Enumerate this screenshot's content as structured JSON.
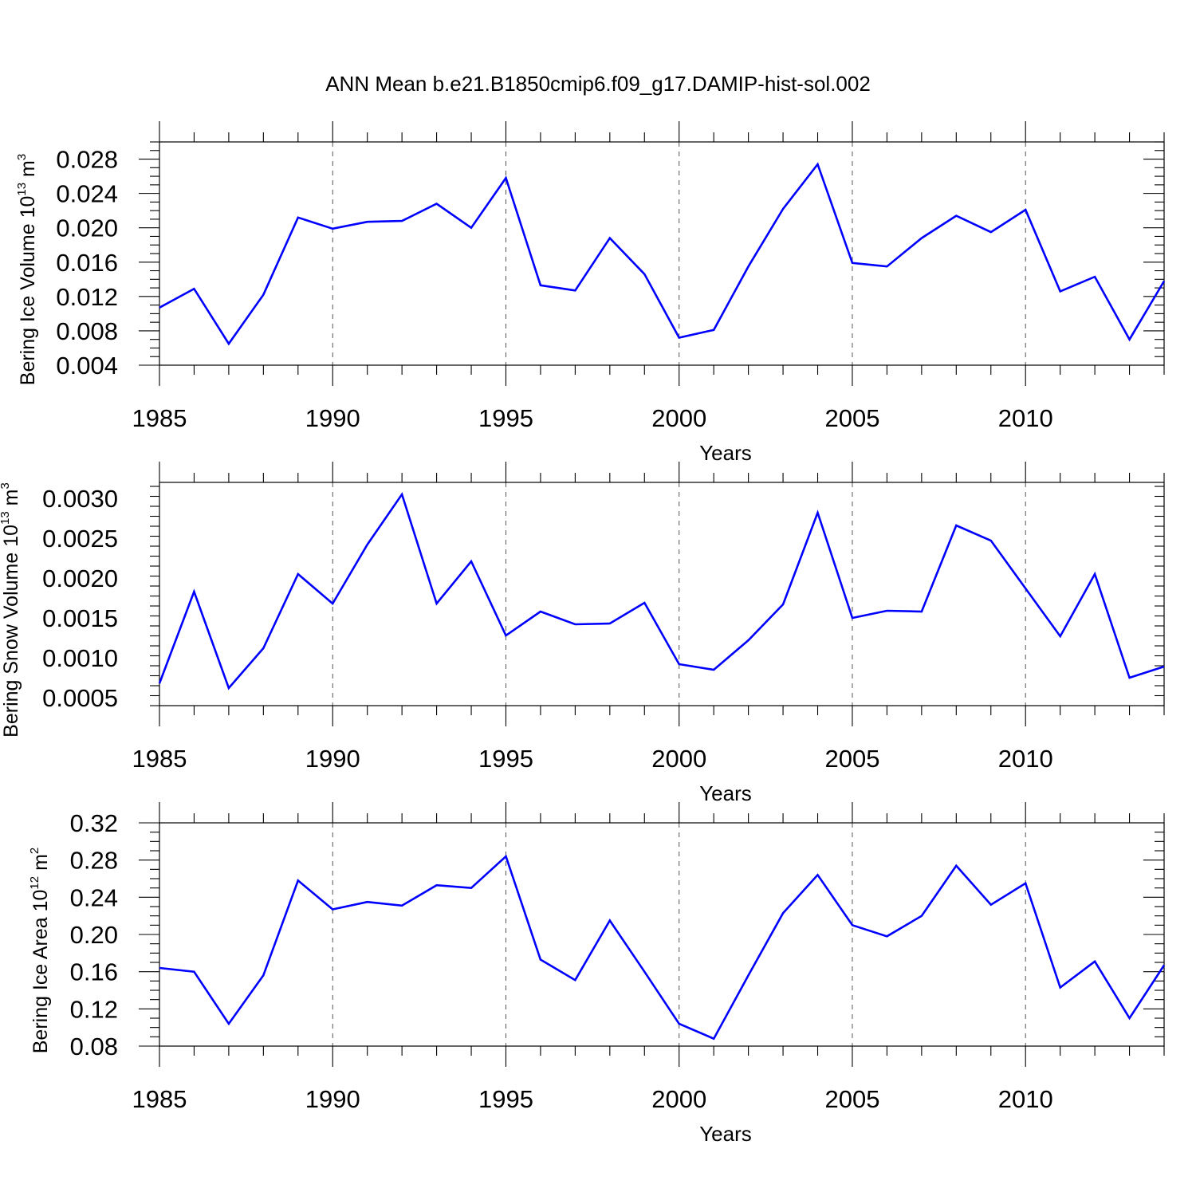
{
  "title": "ANN Mean b.e21.B1850cmip6.f09_g17.DAMIP-hist-sol.002",
  "colors": {
    "line": "#0000ff",
    "axis": "#000000",
    "grid": "#555555"
  },
  "chart_data": [
    {
      "type": "line",
      "xlabel": "Years",
      "ylabel": {
        "text": "Bering Ice Volume 10",
        "exponent": "13",
        "unit": "m",
        "unit_exponent": "3"
      },
      "xlim": [
        1985,
        2014
      ],
      "ylim": [
        0.004,
        0.03
      ],
      "x_ticks": [
        1985,
        1990,
        1995,
        2000,
        2005,
        2010
      ],
      "x_tick_labels": [
        "1985",
        "1990",
        "1995",
        "2000",
        "2005",
        "2010"
      ],
      "y_ticks": [
        0.004,
        0.008,
        0.012,
        0.016,
        0.02,
        0.024,
        0.028
      ],
      "y_tick_labels": [
        "0.004",
        "0.008",
        "0.012",
        "0.016",
        "0.020",
        "0.024",
        "0.028"
      ],
      "grid": "vertical dashed at major x ticks",
      "x": [
        1985,
        1986,
        1987,
        1988,
        1989,
        1990,
        1991,
        1992,
        1993,
        1994,
        1995,
        1996,
        1997,
        1998,
        1999,
        2000,
        2001,
        2002,
        2003,
        2004,
        2005,
        2006,
        2007,
        2008,
        2009,
        2010,
        2011,
        2012,
        2013,
        2014
      ],
      "series": [
        {
          "values": [
            0.0107,
            0.0129,
            0.0065,
            0.0122,
            0.0212,
            0.0199,
            0.0207,
            0.0208,
            0.0228,
            0.02,
            0.0258,
            0.0133,
            0.0127,
            0.0188,
            0.0146,
            0.0072,
            0.0081,
            0.0155,
            0.0222,
            0.0274,
            0.0159,
            0.0155,
            0.0188,
            0.0214,
            0.0195,
            0.0221,
            0.0126,
            0.0143,
            0.007,
            0.0138
          ]
        }
      ]
    },
    {
      "type": "line",
      "xlabel": "Years",
      "ylabel": {
        "text": "Bering Snow Volume 10",
        "exponent": "13",
        "unit": "m",
        "unit_exponent": "3"
      },
      "xlim": [
        1985,
        2014
      ],
      "ylim": [
        0.0004,
        0.0032
      ],
      "x_ticks": [
        1985,
        1990,
        1995,
        2000,
        2005,
        2010
      ],
      "x_tick_labels": [
        "1985",
        "1990",
        "1995",
        "2000",
        "2005",
        "2010"
      ],
      "y_ticks": [
        0.0005,
        0.001,
        0.0015,
        0.002,
        0.0025,
        0.003
      ],
      "y_tick_labels": [
        "0.0005",
        "0.0010",
        "0.0015",
        "0.0020",
        "0.0025",
        "0.0030"
      ],
      "grid": "vertical dashed at major x ticks",
      "x": [
        1985,
        1986,
        1987,
        1988,
        1989,
        1990,
        1991,
        1992,
        1993,
        1994,
        1995,
        1996,
        1997,
        1998,
        1999,
        2000,
        2001,
        2002,
        2003,
        2004,
        2005,
        2006,
        2007,
        2008,
        2009,
        2010,
        2011,
        2012,
        2013,
        2014
      ],
      "series": [
        {
          "values": [
            0.00068,
            0.00183,
            0.00062,
            0.00112,
            0.00205,
            0.00168,
            0.00242,
            0.00305,
            0.00168,
            0.00221,
            0.00128,
            0.00158,
            0.00142,
            0.00143,
            0.00169,
            0.00092,
            0.00085,
            0.00122,
            0.00167,
            0.00282,
            0.0015,
            0.00159,
            0.00158,
            0.00266,
            0.00247,
            0.00187,
            0.00127,
            0.00205,
            0.00075,
            0.00089
          ]
        }
      ]
    },
    {
      "type": "line",
      "xlabel": "Years",
      "ylabel": {
        "text": "Bering Ice Area 10",
        "exponent": "12",
        "unit": "m",
        "unit_exponent": "2"
      },
      "xlim": [
        1985,
        2014
      ],
      "ylim": [
        0.08,
        0.32
      ],
      "x_ticks": [
        1985,
        1990,
        1995,
        2000,
        2005,
        2010
      ],
      "x_tick_labels": [
        "1985",
        "1990",
        "1995",
        "2000",
        "2005",
        "2010"
      ],
      "y_ticks": [
        0.08,
        0.12,
        0.16,
        0.2,
        0.24,
        0.28,
        0.32
      ],
      "y_tick_labels": [
        "0.08",
        "0.12",
        "0.16",
        "0.20",
        "0.24",
        "0.28",
        "0.32"
      ],
      "grid": "vertical dashed at major x ticks",
      "x": [
        1985,
        1986,
        1987,
        1988,
        1989,
        1990,
        1991,
        1992,
        1993,
        1994,
        1995,
        1996,
        1997,
        1998,
        1999,
        2000,
        2001,
        2002,
        2003,
        2004,
        2005,
        2006,
        2007,
        2008,
        2009,
        2010,
        2011,
        2012,
        2013,
        2014
      ],
      "series": [
        {
          "values": [
            0.164,
            0.16,
            0.104,
            0.156,
            0.258,
            0.227,
            0.235,
            0.231,
            0.253,
            0.25,
            0.284,
            0.173,
            0.151,
            0.215,
            0.16,
            0.104,
            0.088,
            0.156,
            0.223,
            0.264,
            0.21,
            0.198,
            0.22,
            0.274,
            0.232,
            0.255,
            0.143,
            0.171,
            0.11,
            0.167
          ]
        }
      ]
    }
  ]
}
